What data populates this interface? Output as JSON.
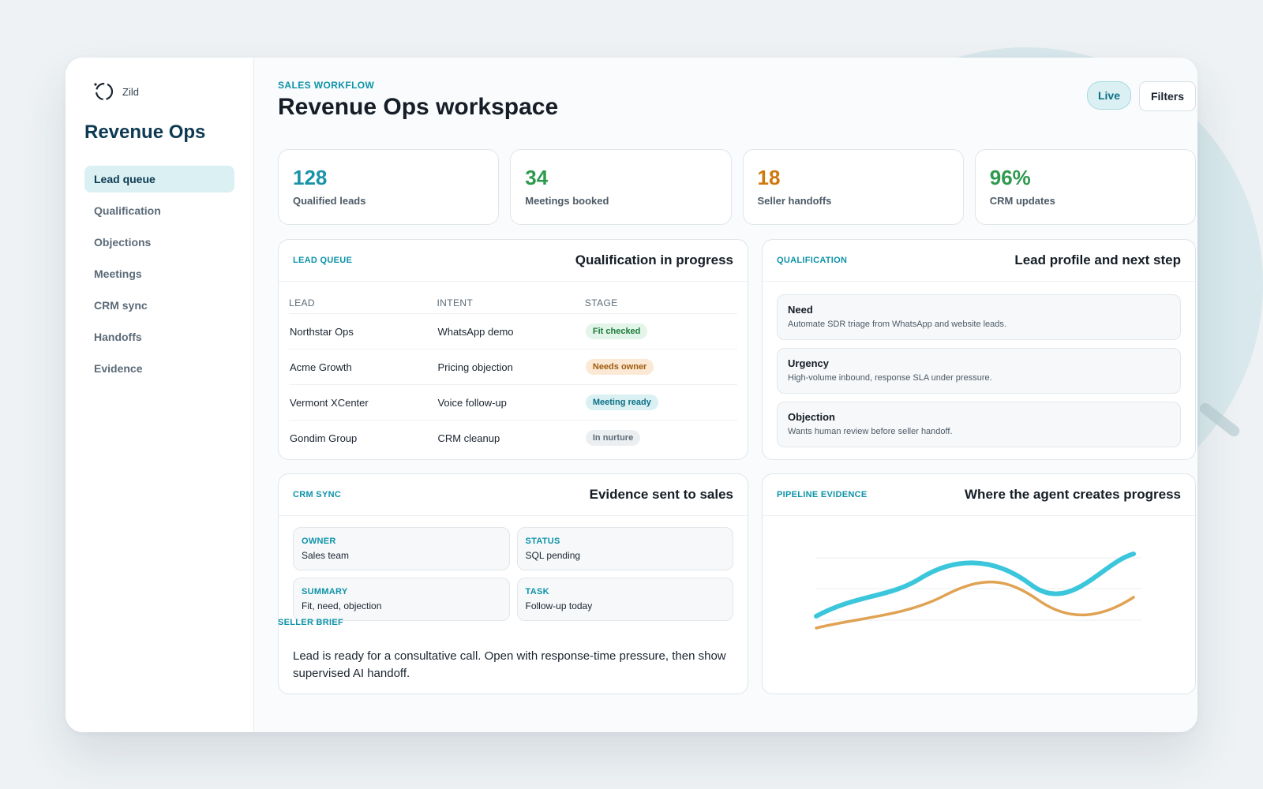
{
  "app": {
    "logo_text": "Zild",
    "title": "Revenue Ops"
  },
  "sidebar": {
    "items": [
      {
        "label": "Lead queue",
        "active": true
      },
      {
        "label": "Qualification"
      },
      {
        "label": "Objections"
      },
      {
        "label": "Meetings"
      },
      {
        "label": "CRM sync"
      },
      {
        "label": "Handoffs"
      },
      {
        "label": "Evidence"
      }
    ]
  },
  "header": {
    "eyebrow": "SALES WORKFLOW",
    "title": "Revenue Ops workspace",
    "live_label": "Live",
    "filters_label": "Filters"
  },
  "kpis": [
    {
      "value": "128",
      "label": "Qualified leads",
      "color": "#1a93a8"
    },
    {
      "value": "34",
      "label": "Meetings booked",
      "color": "#2e9a4e"
    },
    {
      "value": "18",
      "label": "Seller handoffs",
      "color": "#d0780e"
    },
    {
      "value": "96%",
      "label": "CRM updates",
      "color": "#2e9a4e"
    }
  ],
  "lead_queue": {
    "tag": "LEAD QUEUE",
    "title": "Qualification in progress",
    "columns": [
      "LEAD",
      "INTENT",
      "STAGE"
    ],
    "rows": [
      {
        "lead": "Northstar Ops",
        "intent": "WhatsApp demo",
        "stage": "Fit checked"
      },
      {
        "lead": "Acme Growth",
        "intent": "Pricing objection",
        "stage": "Needs owner"
      },
      {
        "lead": "Vermont XCenter",
        "intent": "Voice follow-up",
        "stage": "Meeting ready"
      },
      {
        "lead": "Gondim Group",
        "intent": "CRM cleanup",
        "stage": "In nurture"
      }
    ]
  },
  "qualification": {
    "tag": "QUALIFICATION",
    "title": "Lead profile and next step",
    "items": [
      {
        "key": "Need",
        "value": "Automate SDR triage from WhatsApp and website leads."
      },
      {
        "key": "Urgency",
        "value": "High-volume inbound, response SLA under pressure."
      },
      {
        "key": "Objection",
        "value": "Wants human review before seller handoff."
      }
    ]
  },
  "crm_sync": {
    "tag": "CRM SYNC",
    "title": "Evidence sent to sales",
    "fields": [
      {
        "key": "OWNER",
        "value": "Sales team"
      },
      {
        "key": "STATUS",
        "value": "SQL pending"
      },
      {
        "key": "SUMMARY",
        "value": "Fit, need, objection"
      },
      {
        "key": "TASK",
        "value": "Follow-up today"
      }
    ],
    "brief_tag": "SELLER BRIEF",
    "brief_text": "Lead is ready for a consultative call. Open with response-time pressure, then show supervised AI handoff."
  },
  "pipeline": {
    "tag": "PIPELINE EVIDENCE",
    "title": "Where the agent creates progress",
    "colors": {
      "series_a": "#3cc6dc",
      "series_b": "#e0a253"
    }
  }
}
